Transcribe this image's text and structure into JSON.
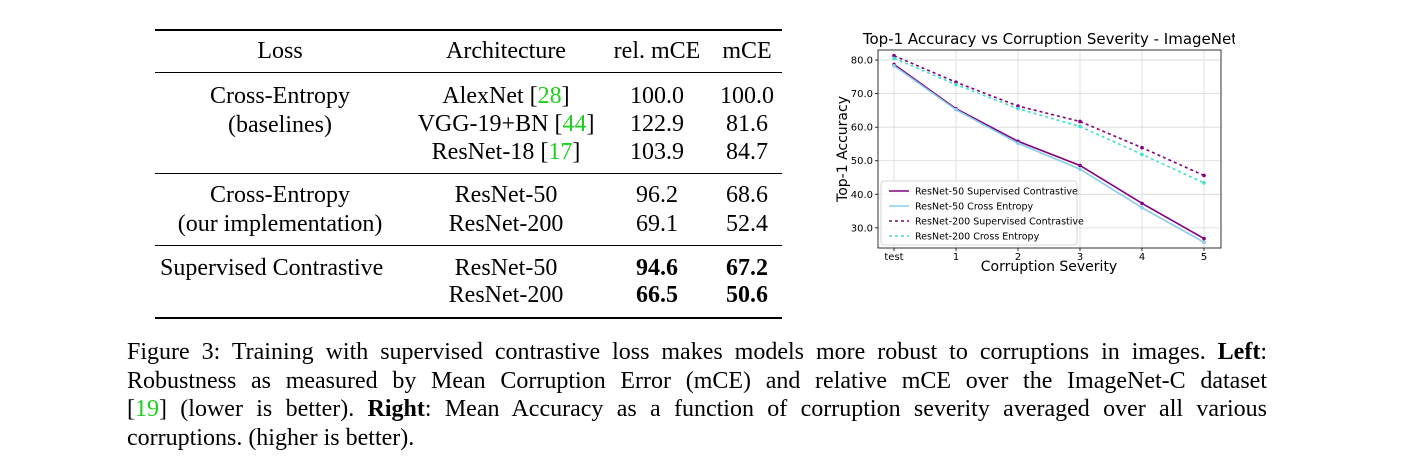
{
  "table": {
    "headers": [
      "Loss",
      "Architecture",
      "rel. mCE",
      "mCE"
    ],
    "groups": [
      {
        "loss": [
          "Cross-Entropy",
          "(baselines)"
        ],
        "rows": [
          {
            "arch": "AlexNet",
            "cite": "28",
            "rel_mce": "100.0",
            "mce": "100.0",
            "bold": false
          },
          {
            "arch": "VGG-19+BN",
            "cite": "44",
            "rel_mce": "122.9",
            "mce": "81.6",
            "bold": false
          },
          {
            "arch": "ResNet-18",
            "cite": "17",
            "rel_mce": "103.9",
            "mce": "84.7",
            "bold": false
          }
        ]
      },
      {
        "loss": [
          "Cross-Entropy",
          "(our implementation)"
        ],
        "rows": [
          {
            "arch": "ResNet-50",
            "cite": "",
            "rel_mce": "96.2",
            "mce": "68.6",
            "bold": false
          },
          {
            "arch": "ResNet-200",
            "cite": "",
            "rel_mce": "69.1",
            "mce": "52.4",
            "bold": false
          }
        ]
      },
      {
        "loss": [
          "Supervised Contrastive"
        ],
        "rows": [
          {
            "arch": "ResNet-50",
            "cite": "",
            "rel_mce": "94.6",
            "mce": "67.2",
            "bold": true
          },
          {
            "arch": "ResNet-200",
            "cite": "",
            "rel_mce": "66.5",
            "mce": "50.6",
            "bold": true
          }
        ]
      }
    ]
  },
  "chart_data": {
    "type": "line",
    "title": "Top-1 Accuracy vs Corruption Severity - ImageNet",
    "xlabel": "Corruption Severity",
    "ylabel": "Top-1 Accuracy",
    "categories": [
      "test",
      "1",
      "2",
      "3",
      "4",
      "5"
    ],
    "yticks": [
      "30.0",
      "40.0",
      "50.0",
      "60.0",
      "70.0",
      "80.0"
    ],
    "ylim": [
      24,
      83
    ],
    "grid": true,
    "legend_position": "bottom-left",
    "series": [
      {
        "name": "ResNet-50 Supervised Contrastive",
        "values": [
          78.7,
          65.5,
          55.8,
          48.6,
          37.3,
          26.8
        ],
        "color": "#800080",
        "dash": "solid"
      },
      {
        "name": "ResNet-50 Cross Entropy",
        "values": [
          78.3,
          65.2,
          55.2,
          47.5,
          36.0,
          25.7
        ],
        "color": "#87ceeb",
        "dash": "solid"
      },
      {
        "name": "ResNet-200 Supervised Contrastive",
        "values": [
          81.3,
          73.4,
          66.3,
          61.7,
          53.9,
          45.6
        ],
        "color": "#800080",
        "dash": "dotted"
      },
      {
        "name": "ResNet-200 Cross Entropy",
        "values": [
          80.5,
          72.7,
          65.5,
          60.2,
          51.9,
          43.4
        ],
        "color": "#40e0d0",
        "dash": "dotted"
      }
    ]
  },
  "caption": {
    "segments": [
      {
        "text": "Figure 3: Training with supervised contrastive loss makes models more robust to corruptions in images. ",
        "style": "normal",
        "line": 0
      },
      {
        "text": "Left",
        "style": "bold",
        "line": 0
      },
      {
        "text": ":",
        "style": "normal",
        "line": 0
      },
      {
        "text": "Robustness as measured by Mean Corruption Error (mCE) and relative mCE over the ImageNet-C dataset",
        "style": "normal",
        "line": 1
      },
      {
        "text": "[",
        "style": "normal",
        "line": 2
      },
      {
        "text": "19",
        "style": "cite",
        "line": 2
      },
      {
        "text": "] (lower is better).  ",
        "style": "normal",
        "line": 2
      },
      {
        "text": "Right",
        "style": "bold",
        "line": 2
      },
      {
        "text": ":  Mean Accuracy as a function of corruption severity averaged over all various",
        "style": "normal",
        "line": 2
      },
      {
        "text": "corruptions. (higher is better).",
        "style": "normal",
        "line": 3
      }
    ]
  }
}
